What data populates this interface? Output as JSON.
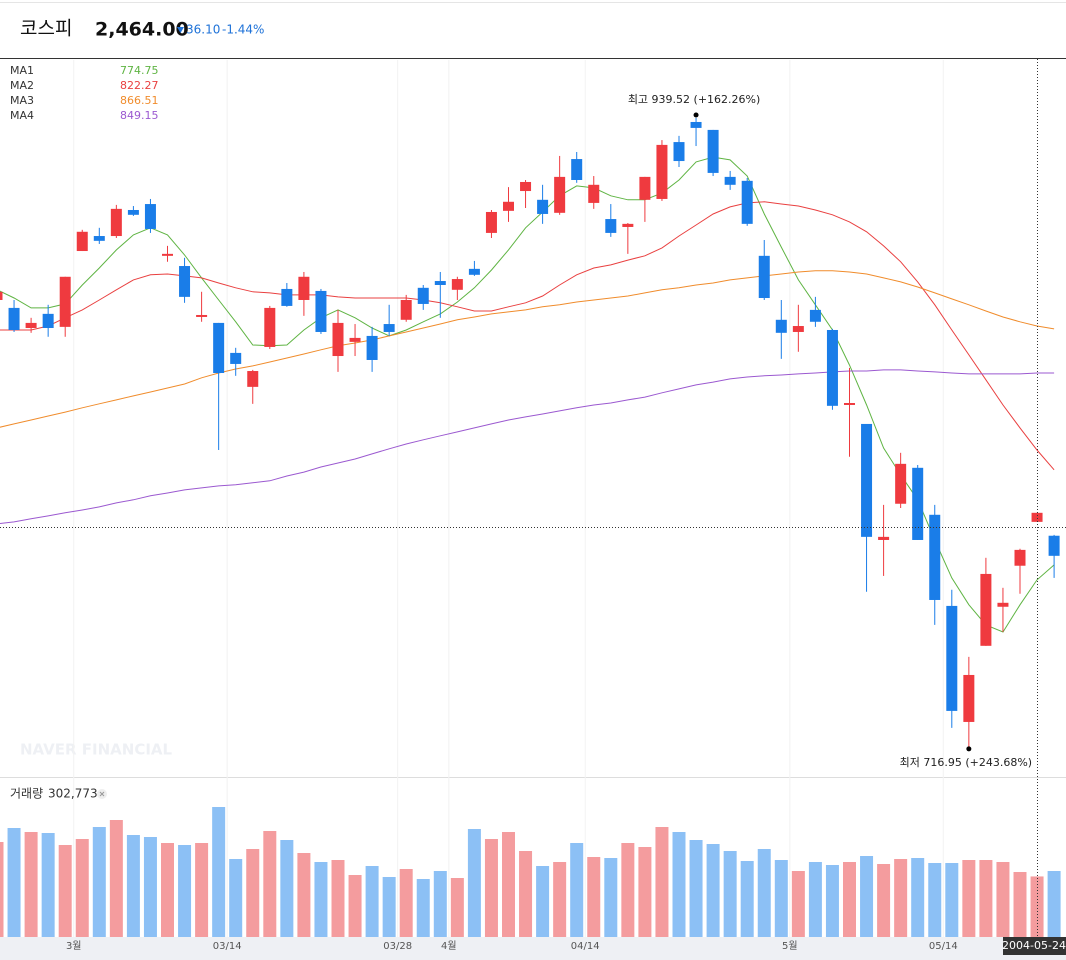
{
  "header": {
    "name": "코스피",
    "price": "2,464.00",
    "change": "36.10",
    "change_rate": "-1.44%"
  },
  "chart_data": {
    "type": "candlestick",
    "categories": [
      null,
      null,
      null,
      null,
      null,
      "3월",
      null,
      null,
      null,
      null,
      null,
      null,
      null,
      null,
      "03/14",
      null,
      null,
      null,
      null,
      null,
      null,
      null,
      null,
      null,
      "03/28",
      null,
      null,
      "4월",
      null,
      null,
      null,
      null,
      null,
      null,
      null,
      "04/14",
      null,
      null,
      null,
      null,
      null,
      null,
      null,
      null,
      null,
      null,
      null,
      "5월",
      null,
      null,
      null,
      null,
      null,
      null,
      null,
      null,
      "05/14",
      null,
      null,
      null,
      null,
      null,
      null
    ],
    "open": [
      875.2,
      872.4,
      865.3,
      870.3,
      865.7,
      892.5,
      897.8,
      897.8,
      907.0,
      909.1,
      890.8,
      887.2,
      869.2,
      867.1,
      856.5,
      844.5,
      858.6,
      879.1,
      875.2,
      878.4,
      855.4,
      860.4,
      862.5,
      866.7,
      868.2,
      879.5,
      881.9,
      878.8,
      886.2,
      898.9,
      906.7,
      913.7,
      910.6,
      906.0,
      925.0,
      909.5,
      903.8,
      901.0,
      910.6,
      910.9,
      931.0,
      938.1,
      935.3,
      918.7,
      917.3,
      890.8,
      868.2,
      863.9,
      871.7,
      864.6,
      838.1,
      831.4,
      790.4,
      803.2,
      815.9,
      799.3,
      767.1,
      726.1,
      753.0,
      766.8,
      781.3,
      796.8,
      791.9
    ],
    "high": [
      878.8,
      875.2,
      868.9,
      873.5,
      883.4,
      900.0,
      900.7,
      908.8,
      908.4,
      910.9,
      894.3,
      890.1,
      878.1,
      867.1,
      858.3,
      850.5,
      873.1,
      881.2,
      885.1,
      879.1,
      871.7,
      866.7,
      865.7,
      873.5,
      877.0,
      880.5,
      885.1,
      883.4,
      889.0,
      907.0,
      915.1,
      917.6,
      915.9,
      926.1,
      927.5,
      919.0,
      909.1,
      902.4,
      918.7,
      931.7,
      933.2,
      939.52,
      935.3,
      920.8,
      918.3,
      896.4,
      875.2,
      873.5,
      876.3,
      865.0,
      851.2,
      831.4,
      802.8,
      821.2,
      816.9,
      802.8,
      772.8,
      749.1,
      784.1,
      773.5,
      787.3,
      800.0,
      792.2
    ],
    "low": [
      874.5,
      863.9,
      863.6,
      862.2,
      862.2,
      892.5,
      895.0,
      897.1,
      904.9,
      898.9,
      888.7,
      874.2,
      867.5,
      822.2,
      848.4,
      838.5,
      857.9,
      872.8,
      869.6,
      863.2,
      849.8,
      855.4,
      849.8,
      862.5,
      867.5,
      871.7,
      868.9,
      875.2,
      883.7,
      897.1,
      902.8,
      907.7,
      902.1,
      905.3,
      916.6,
      907.4,
      897.5,
      891.5,
      902.8,
      910.2,
      922.2,
      929.6,
      919.0,
      914.1,
      901.4,
      875.2,
      854.4,
      856.9,
      865.7,
      836.4,
      819.8,
      772.1,
      777.7,
      801.7,
      790.4,
      760.4,
      724.0,
      716.95,
      753.0,
      757.9,
      771.4,
      796.8,
      777.0
    ],
    "close": [
      878.1,
      864.6,
      867.1,
      865.3,
      883.4,
      899.3,
      896.1,
      907.4,
      905.3,
      900.3,
      891.5,
      876.3,
      869.9,
      849.4,
      852.6,
      850.1,
      872.4,
      873.1,
      883.4,
      863.9,
      867.1,
      861.8,
      854.0,
      863.9,
      875.2,
      873.8,
      880.5,
      882.6,
      884.1,
      906.3,
      909.9,
      916.9,
      905.6,
      918.7,
      917.6,
      915.9,
      898.9,
      902.1,
      918.7,
      930.0,
      924.3,
      936.0,
      920.1,
      915.9,
      902.1,
      875.9,
      863.6,
      866.0,
      867.5,
      837.8,
      838.8,
      791.5,
      791.5,
      817.3,
      790.4,
      769.2,
      730.0,
      742.7,
      778.4,
      768.2,
      786.9,
      800.0,
      784.8
    ],
    "up_color": "#ef3a3f",
    "down_color": "#1a7de8",
    "ylim": [
      707,
      960
    ],
    "series": [
      {
        "name": "MA1",
        "color": "#5fb443",
        "legend_value": 774.75,
        "values": [
          878.8,
          875.9,
          872.4,
          872.4,
          873.8,
          880.5,
          886.5,
          892.9,
          898.2,
          900.7,
          898.2,
          891.1,
          883.0,
          875.2,
          867.5,
          859.3,
          859.0,
          859.3,
          864.6,
          868.9,
          871.7,
          868.9,
          865.3,
          862.5,
          864.6,
          867.5,
          870.3,
          874.5,
          879.5,
          885.8,
          892.9,
          900.7,
          906.3,
          912.0,
          915.5,
          914.8,
          912.0,
          910.6,
          910.6,
          913.0,
          917.6,
          924.0,
          925.7,
          924.7,
          919.0,
          905.6,
          893.9,
          882.3,
          873.5,
          864.6,
          852.2,
          838.1,
          822.9,
          813.4,
          804.6,
          790.4,
          777.0,
          767.5,
          760.4,
          757.9,
          767.5,
          776.3,
          781.6
        ]
      },
      {
        "name": "MA2",
        "color": "#e94040",
        "legend_value": 822.27,
        "values": [
          864.6,
          864.6,
          864.6,
          866.0,
          868.9,
          871.7,
          875.2,
          878.8,
          882.3,
          884.1,
          884.4,
          883.7,
          883.0,
          881.2,
          879.5,
          878.1,
          877.7,
          877.0,
          877.0,
          877.0,
          876.3,
          875.9,
          875.9,
          875.9,
          875.9,
          875.2,
          874.2,
          872.8,
          871.3,
          871.3,
          872.8,
          874.2,
          876.6,
          880.5,
          884.1,
          886.5,
          887.6,
          889.3,
          890.8,
          893.6,
          897.8,
          901.7,
          905.6,
          908.1,
          909.5,
          909.9,
          909.1,
          908.4,
          907.0,
          905.3,
          902.8,
          899.3,
          894.3,
          888.7,
          881.6,
          873.5,
          864.6,
          855.8,
          847.0,
          838.1,
          830.0,
          822.2,
          815.2
        ]
      },
      {
        "name": "MA3",
        "color": "#f08c2c",
        "legend_value": 866.51,
        "values": [
          830.0,
          831.4,
          832.8,
          834.2,
          835.6,
          837.1,
          838.5,
          839.9,
          841.3,
          842.7,
          844.1,
          845.5,
          847.7,
          849.4,
          850.8,
          851.9,
          853.3,
          854.7,
          856.1,
          857.6,
          859.0,
          860.0,
          861.1,
          862.5,
          863.9,
          865.3,
          866.7,
          868.2,
          869.2,
          870.3,
          871.0,
          871.7,
          872.8,
          873.5,
          874.5,
          875.2,
          875.9,
          876.6,
          877.7,
          878.8,
          879.5,
          880.5,
          881.2,
          882.3,
          883.0,
          883.7,
          884.4,
          885.1,
          885.5,
          885.5,
          885.1,
          884.4,
          883.0,
          881.6,
          879.8,
          877.7,
          875.6,
          873.5,
          871.3,
          869.2,
          867.5,
          866.0,
          865.0
        ]
      },
      {
        "name": "MA4",
        "color": "#9b59d0",
        "legend_value": 849.15,
        "values": [
          796.1,
          796.8,
          797.9,
          798.9,
          800.0,
          801.0,
          802.1,
          803.5,
          804.6,
          806.0,
          807.0,
          808.1,
          808.8,
          809.5,
          809.9,
          810.6,
          811.3,
          813.0,
          814.4,
          816.2,
          817.6,
          819.0,
          820.8,
          822.6,
          824.3,
          825.8,
          827.2,
          828.6,
          830.0,
          831.4,
          832.8,
          833.9,
          834.9,
          836.0,
          837.1,
          838.1,
          838.8,
          839.9,
          840.9,
          842.4,
          843.8,
          845.2,
          846.2,
          847.3,
          848.0,
          848.4,
          848.7,
          849.1,
          849.4,
          849.8,
          850.1,
          850.1,
          850.5,
          850.5,
          850.1,
          849.8,
          849.4,
          849.1,
          849.1,
          849.1,
          849.1,
          849.4,
          849.4
        ]
      }
    ],
    "high_label": "최고 939.52 (+162.26%)",
    "low_label": "최저 716.95 (+243.68%)",
    "volume": {
      "label": "거래량",
      "value_label": "302,773",
      "lim": [
        0,
        700000
      ],
      "up_color": "#f49c9e",
      "down_color": "#8cc0f5",
      "values": [
        475000,
        545000,
        525000,
        520000,
        460000,
        490000,
        550000,
        585000,
        510000,
        500000,
        470000,
        460000,
        470000,
        650000,
        390000,
        440000,
        530000,
        485000,
        420000,
        375000,
        385000,
        310000,
        355000,
        300000,
        340000,
        290000,
        330000,
        295000,
        540000,
        490000,
        525000,
        430000,
        355000,
        375000,
        470000,
        400000,
        395000,
        470000,
        450000,
        550000,
        525000,
        485000,
        465000,
        430000,
        380000,
        440000,
        385000,
        330000,
        375000,
        360000,
        375000,
        405000,
        365000,
        390000,
        395000,
        370000,
        370000,
        385000,
        385000,
        375000,
        325000,
        302773,
        330000
      ]
    },
    "crosshair_date": "2004-05-24",
    "watermark": "NAVER FINANCIAL"
  }
}
